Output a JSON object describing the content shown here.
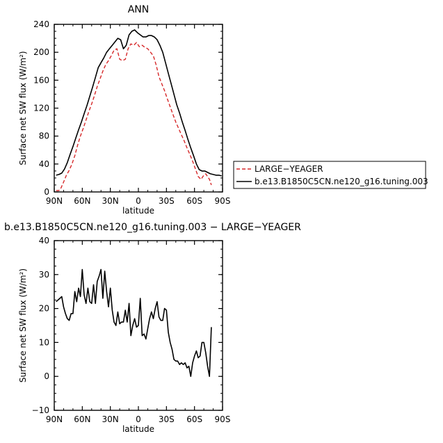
{
  "chart_data": [
    {
      "type": "line",
      "title": "ANN",
      "xlabel": "latitude",
      "ylabel": "Surface net SW flux (W/m²)",
      "xlim": [
        90,
        -90
      ],
      "ylim": [
        0,
        240
      ],
      "x_ticks": [
        90,
        60,
        30,
        0,
        -30,
        -60,
        -90
      ],
      "x_tick_labels": [
        "90N",
        "60N",
        "30N",
        "0",
        "30S",
        "60S",
        "90S"
      ],
      "y_ticks": [
        0,
        40,
        80,
        120,
        160,
        200,
        240
      ],
      "y_tick_labels": [
        "0",
        "40",
        "80",
        "120",
        "160",
        "200",
        "240"
      ],
      "legend_position": "right",
      "series": [
        {
          "name": "LARGE−YEAGER",
          "color": "#d62728",
          "dash": "dashed",
          "x": [
            88,
            85,
            83,
            80,
            77,
            74,
            71,
            68,
            65,
            62,
            59,
            56,
            53,
            50,
            47,
            44,
            41,
            38,
            35,
            32,
            29,
            26,
            23,
            20,
            17,
            14,
            11,
            8,
            5,
            2,
            -1,
            -4,
            -7,
            -10,
            -13,
            -16,
            -19,
            -22,
            -25,
            -28,
            -31,
            -34,
            -37,
            -40,
            -43,
            -46,
            -49,
            -52,
            -55,
            -58,
            -61,
            -64,
            -67,
            -70,
            -72,
            -74,
            -76,
            -78
          ],
          "values": [
            2,
            2,
            5,
            14,
            24,
            31,
            40,
            52,
            67,
            80,
            91,
            103,
            115,
            126,
            138,
            151,
            162,
            173,
            182,
            188,
            195,
            203,
            205,
            190,
            188,
            190,
            205,
            212,
            210,
            214,
            208,
            210,
            207,
            205,
            200,
            195,
            182,
            165,
            155,
            145,
            133,
            122,
            111,
            100,
            91,
            82,
            73,
            63,
            54,
            44,
            33,
            22,
            18,
            24,
            26,
            22,
            18,
            10
          ]
        },
        {
          "name": "b.e13.B1850C5CN.ne120_g16.tuning.003",
          "color": "#000000",
          "dash": "solid",
          "x": [
            88,
            85,
            82,
            79,
            76,
            73,
            70,
            67,
            64,
            61,
            58,
            55,
            52,
            49,
            46,
            43,
            40,
            37,
            34,
            31,
            28,
            25,
            22,
            19,
            16,
            13,
            10,
            7,
            4,
            1,
            -2,
            -5,
            -8,
            -11,
            -14,
            -17,
            -20,
            -23,
            -26,
            -29,
            -32,
            -35,
            -38,
            -41,
            -44,
            -47,
            -50,
            -53,
            -56,
            -59,
            -62,
            -65,
            -68,
            -71,
            -74,
            -77,
            -80,
            -83,
            -86,
            -89
          ],
          "values": [
            24,
            25,
            27,
            33,
            42,
            54,
            65,
            77,
            89,
            100,
            112,
            124,
            137,
            150,
            164,
            178,
            185,
            192,
            200,
            205,
            210,
            215,
            220,
            218,
            205,
            210,
            225,
            230,
            232,
            228,
            225,
            222,
            222,
            224,
            224,
            222,
            218,
            210,
            200,
            185,
            170,
            155,
            140,
            125,
            113,
            100,
            88,
            75,
            63,
            52,
            40,
            32,
            30,
            30,
            28,
            26,
            25,
            24,
            24,
            23
          ]
        }
      ]
    },
    {
      "type": "line",
      "title": "b.e13.B1850C5CN.ne120_g16.tuning.003 − LARGE−YEAGER",
      "xlabel": "latitude",
      "ylabel": "Surface net SW flux (W/m²)",
      "xlim": [
        90,
        -90
      ],
      "ylim": [
        -10,
        40
      ],
      "x_ticks": [
        90,
        60,
        30,
        0,
        -30,
        -60,
        -90
      ],
      "x_tick_labels": [
        "90N",
        "60N",
        "30N",
        "0",
        "30S",
        "60S",
        "90S"
      ],
      "y_ticks": [
        -10,
        0,
        10,
        20,
        30,
        40
      ],
      "y_tick_labels": [
        "−10",
        "0",
        "10",
        "20",
        "30",
        "40"
      ],
      "series": [
        {
          "color": "#000000",
          "dash": "solid",
          "x": [
            88,
            86,
            84,
            82,
            80,
            78,
            76,
            74,
            72,
            70,
            68,
            66,
            64,
            62,
            60,
            58,
            56,
            54,
            52,
            50,
            48,
            46,
            44,
            42,
            40,
            38,
            36,
            34,
            32,
            30,
            28,
            26,
            24,
            22,
            20,
            18,
            16,
            14,
            12,
            10,
            8,
            6,
            4,
            2,
            0,
            -2,
            -4,
            -6,
            -8,
            -10,
            -12,
            -14,
            -16,
            -18,
            -20,
            -22,
            -24,
            -26,
            -28,
            -30,
            -32,
            -34,
            -36,
            -38,
            -40,
            -42,
            -44,
            -46,
            -48,
            -50,
            -52,
            -54,
            -56,
            -58,
            -60,
            -62,
            -64,
            -66,
            -68,
            -70,
            -72,
            -74,
            -76,
            -78
          ],
          "values": [
            22,
            22.5,
            23,
            23.5,
            20.5,
            18.5,
            17,
            16.5,
            18.5,
            18.5,
            25,
            22,
            26,
            23.5,
            31.5,
            24,
            21.5,
            26,
            22,
            21.5,
            27,
            21.5,
            28,
            29.5,
            31.5,
            23,
            31,
            25,
            20.5,
            26,
            19.5,
            16,
            15,
            19,
            15.5,
            16,
            16,
            19.5,
            16,
            21.5,
            12,
            15,
            17,
            14.5,
            15,
            23,
            12,
            12.5,
            11,
            14,
            17,
            19,
            17,
            20,
            22,
            17.5,
            16.5,
            16.5,
            20,
            19.5,
            13,
            10,
            8,
            5,
            4.5,
            4.5,
            3.5,
            4,
            3.5,
            4,
            2.5,
            3,
            0,
            4,
            6,
            7.5,
            5.5,
            6,
            10,
            10,
            7,
            3,
            0,
            14.5
          ]
        }
      ]
    }
  ]
}
